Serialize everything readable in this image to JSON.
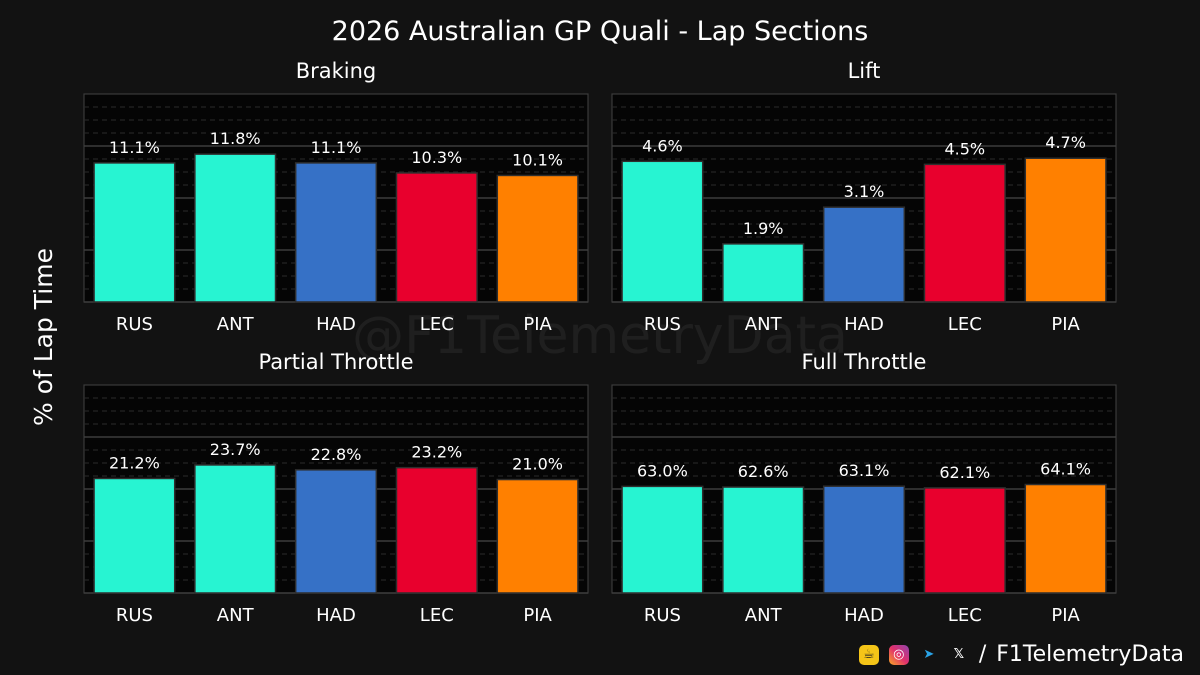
{
  "page": {
    "title": "2026 Australian GP Quali - Lap Sections",
    "ylabel": "% of Lap Time",
    "watermark": "@F1TelemetryData"
  },
  "footer": {
    "separator": "/",
    "handle": "F1TelemetryData",
    "icons": [
      "cup-icon",
      "instagram-icon",
      "telegram-icon",
      "x-icon"
    ]
  },
  "colors": {
    "RUS": "#27F4D2",
    "ANT": "#27F4D2",
    "HAD": "#3671C6",
    "LEC": "#E8002D",
    "PIA": "#FF8000",
    "background": "#121212",
    "plot_background": "#050505"
  },
  "chart_data": [
    {
      "type": "bar",
      "title": "Braking",
      "categories": [
        "RUS",
        "ANT",
        "HAD",
        "LEC",
        "PIA"
      ],
      "values": [
        11.1,
        11.8,
        11.1,
        10.3,
        10.1
      ],
      "value_labels": [
        "11.1%",
        "11.8%",
        "11.1%",
        "10.3%",
        "10.1%"
      ],
      "ylim": [
        0,
        16.6
      ],
      "grid": true
    },
    {
      "type": "bar",
      "title": "Lift",
      "categories": [
        "RUS",
        "ANT",
        "HAD",
        "LEC",
        "PIA"
      ],
      "values": [
        4.6,
        1.9,
        3.1,
        4.5,
        4.7
      ],
      "value_labels": [
        "4.6%",
        "1.9%",
        "3.1%",
        "4.5%",
        "4.7%"
      ],
      "ylim": [
        0,
        6.8
      ],
      "grid": true
    },
    {
      "type": "bar",
      "title": "Partial Throttle",
      "categories": [
        "RUS",
        "ANT",
        "HAD",
        "LEC",
        "PIA"
      ],
      "values": [
        21.2,
        23.7,
        22.8,
        23.2,
        21.0
      ],
      "value_labels": [
        "21.2%",
        "23.7%",
        "22.8%",
        "23.2%",
        "21.0%"
      ],
      "ylim": [
        0,
        38.5
      ],
      "grid": true
    },
    {
      "type": "bar",
      "title": "Full Throttle",
      "categories": [
        "RUS",
        "ANT",
        "HAD",
        "LEC",
        "PIA"
      ],
      "values": [
        63.0,
        62.6,
        63.1,
        62.1,
        64.1
      ],
      "value_labels": [
        "63.0%",
        "62.6%",
        "63.1%",
        "62.1%",
        "64.1%"
      ],
      "ylim": [
        0,
        122.9
      ],
      "grid": true
    }
  ]
}
